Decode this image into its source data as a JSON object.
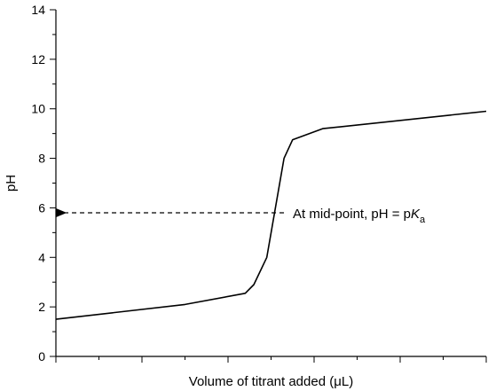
{
  "chart_data": {
    "type": "line",
    "xlabel": "Volume of titrant added (μL)",
    "ylabel": "pH",
    "xlim": [
      0,
      10
    ],
    "ylim": [
      0,
      14
    ],
    "x_ticks_labeled": false,
    "y_ticks": [
      "0",
      "2",
      "4",
      "6",
      "8",
      "10",
      "12",
      "14"
    ],
    "grid": false,
    "series": [
      {
        "x": [
          0,
          3.0,
          4.4,
          4.6,
          4.9,
          5.3,
          5.5,
          6.2,
          10
        ],
        "y": [
          1.5,
          2.1,
          2.55,
          2.9,
          4.0,
          8.0,
          8.75,
          9.2,
          9.9
        ]
      }
    ],
    "annotation": {
      "text_prefix": "At mid-point, pH = p",
      "text_var": "K",
      "text_sub": "a",
      "arrow_from_x": 5.3,
      "arrow_to_x": 0.15,
      "y": 5.8,
      "style": "dashed"
    }
  }
}
